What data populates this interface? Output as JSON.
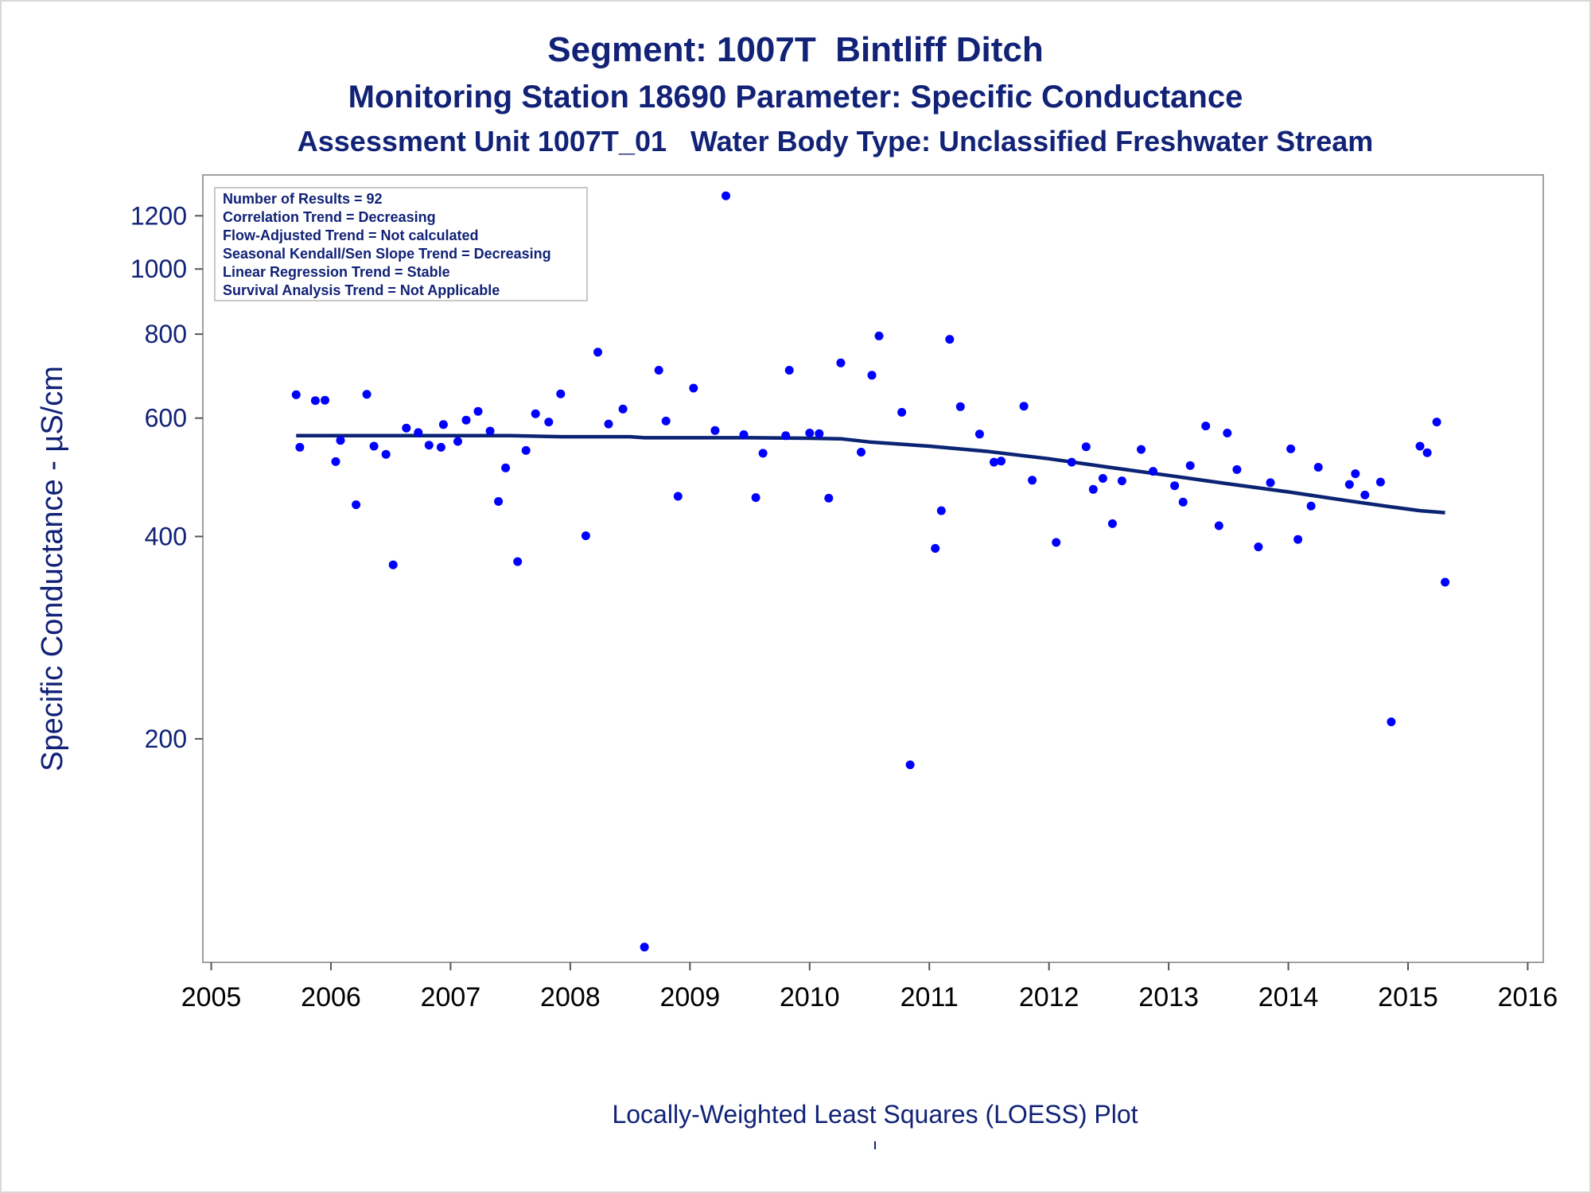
{
  "titles": {
    "line1": "Segment: 1007T  Bintliff Ditch",
    "line2": "Monitoring Station 18690 Parameter: Specific Conductance",
    "line3": "Assessment Unit 1007T_01   Water Body Type: Unclassified Freshwater Stream"
  },
  "footnote": "Locally-Weighted Least Squares (LOESS) Plot",
  "colors": {
    "text": "#112277",
    "points": "#0000ff",
    "loess": "#0a2373",
    "frame": "#a0a0a0"
  },
  "chart_data": {
    "type": "scatter",
    "ylabel": "Specific Conductance -  µS/cm",
    "xlabel": "",
    "y_scale": "log",
    "ylim": [
      93,
      1380
    ],
    "xlim": [
      2004.93,
      2016.13
    ],
    "x_ticks": [
      2005,
      2006,
      2007,
      2008,
      2009,
      2010,
      2011,
      2012,
      2013,
      2014,
      2015,
      2016
    ],
    "y_ticks": [
      200,
      400,
      600,
      800,
      1000,
      1200
    ],
    "legend": {
      "placement": "top-left",
      "lines": [
        "Number of Results = 92",
        "Correlation Trend = Decreasing",
        "Flow-Adjusted Trend = Not calculated",
        "Seasonal Kendall/Sen Slope Trend = Decreasing",
        "Linear Regression Trend = Stable",
        "Survival Analysis Trend = Not Applicable"
      ]
    },
    "series": [
      {
        "type": "scatter",
        "points": [
          [
            2005.71,
            650
          ],
          [
            2005.74,
            543
          ],
          [
            2005.87,
            637
          ],
          [
            2005.95,
            638
          ],
          [
            2006.04,
            517
          ],
          [
            2006.08,
            556
          ],
          [
            2006.21,
            446
          ],
          [
            2006.3,
            651
          ],
          [
            2006.36,
            545
          ],
          [
            2006.46,
            530
          ],
          [
            2006.52,
            363
          ],
          [
            2006.63,
            580
          ],
          [
            2006.73,
            571
          ],
          [
            2006.82,
            547
          ],
          [
            2006.92,
            543
          ],
          [
            2006.94,
            587
          ],
          [
            2007.06,
            554
          ],
          [
            2007.13,
            596
          ],
          [
            2007.23,
            614
          ],
          [
            2007.33,
            574
          ],
          [
            2007.4,
            451
          ],
          [
            2007.46,
            506
          ],
          [
            2007.56,
            367
          ],
          [
            2007.63,
            537
          ],
          [
            2007.71,
            609
          ],
          [
            2007.82,
            592
          ],
          [
            2007.92,
            652
          ],
          [
            2008.13,
            401
          ],
          [
            2008.23,
            752
          ],
          [
            2008.32,
            588
          ],
          [
            2008.44,
            619
          ],
          [
            2008.62,
            98
          ],
          [
            2008.74,
            707
          ],
          [
            2008.8,
            594
          ],
          [
            2008.9,
            459
          ],
          [
            2009.03,
            665
          ],
          [
            2009.21,
            575
          ],
          [
            2009.3,
            1285
          ],
          [
            2009.45,
            567
          ],
          [
            2009.55,
            457
          ],
          [
            2009.61,
            532
          ],
          [
            2009.8,
            565
          ],
          [
            2009.83,
            707
          ],
          [
            2010.0,
            570
          ],
          [
            2010.08,
            569
          ],
          [
            2010.16,
            456
          ],
          [
            2010.26,
            725
          ],
          [
            2010.43,
            534
          ],
          [
            2010.52,
            695
          ],
          [
            2010.58,
            795
          ],
          [
            2010.77,
            612
          ],
          [
            2010.84,
            183
          ],
          [
            2011.05,
            384
          ],
          [
            2011.1,
            437
          ],
          [
            2011.17,
            786
          ],
          [
            2011.26,
            624
          ],
          [
            2011.42,
            568
          ],
          [
            2011.54,
            516
          ],
          [
            2011.6,
            518
          ],
          [
            2011.79,
            625
          ],
          [
            2011.86,
            485
          ],
          [
            2012.06,
            392
          ],
          [
            2012.19,
            516
          ],
          [
            2012.31,
            544
          ],
          [
            2012.37,
            470
          ],
          [
            2012.45,
            488
          ],
          [
            2012.53,
            418
          ],
          [
            2012.61,
            484
          ],
          [
            2012.77,
            539
          ],
          [
            2012.87,
            500
          ],
          [
            2013.05,
            476
          ],
          [
            2013.12,
            450
          ],
          [
            2013.18,
            510
          ],
          [
            2013.31,
            584
          ],
          [
            2013.42,
            415
          ],
          [
            2013.49,
            570
          ],
          [
            2013.57,
            503
          ],
          [
            2013.75,
            386
          ],
          [
            2013.85,
            481
          ],
          [
            2014.02,
            540
          ],
          [
            2014.08,
            396
          ],
          [
            2014.19,
            444
          ],
          [
            2014.25,
            507
          ],
          [
            2014.51,
            478
          ],
          [
            2014.56,
            496
          ],
          [
            2014.64,
            461
          ],
          [
            2014.77,
            482
          ],
          [
            2014.86,
            212
          ],
          [
            2015.1,
            545
          ],
          [
            2015.16,
            533
          ],
          [
            2015.24,
            592
          ],
          [
            2015.31,
            342
          ]
        ]
      },
      {
        "type": "line",
        "points": [
          [
            2005.71,
            565
          ],
          [
            2006.5,
            565
          ],
          [
            2007.5,
            565
          ],
          [
            2007.93,
            563
          ],
          [
            2008.5,
            563
          ],
          [
            2008.62,
            561
          ],
          [
            2009.5,
            561
          ],
          [
            2010.0,
            560
          ],
          [
            2010.26,
            559
          ],
          [
            2010.5,
            553
          ],
          [
            2011.0,
            545
          ],
          [
            2011.5,
            535
          ],
          [
            2012.0,
            522
          ],
          [
            2012.5,
            507
          ],
          [
            2013.0,
            493
          ],
          [
            2013.5,
            479
          ],
          [
            2014.0,
            466
          ],
          [
            2014.5,
            452
          ],
          [
            2014.85,
            443
          ],
          [
            2015.1,
            437
          ],
          [
            2015.31,
            434
          ]
        ]
      }
    ]
  }
}
